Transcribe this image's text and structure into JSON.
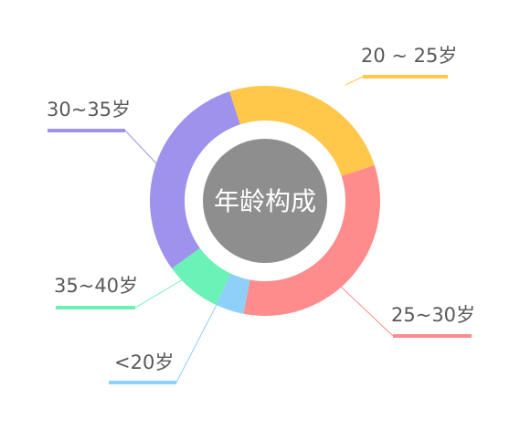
{
  "chart_data": {
    "type": "pie",
    "variant": "donut",
    "title": "年龄构成",
    "legend": "leader-lines",
    "series": [
      {
        "name": "20 ~ 25岁",
        "value": 25,
        "color": "#FFC84A"
      },
      {
        "name": "25~30岁",
        "value": 33,
        "color": "#FF8C8C"
      },
      {
        "name": "<20岁",
        "value": 4,
        "color": "#8ED0FA"
      },
      {
        "name": "35~40岁",
        "value": 8,
        "color": "#6BF2B6"
      },
      {
        "name": "30~35岁",
        "value": 30,
        "color": "#9F92EC"
      }
    ],
    "center_color": "#8E8E8E"
  }
}
